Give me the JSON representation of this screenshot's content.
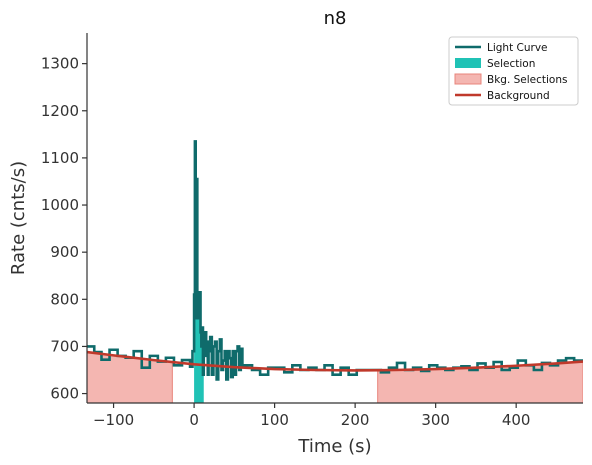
{
  "chart_data": {
    "type": "line",
    "title": "n8",
    "xlabel": "Time (s)",
    "ylabel": "Rate (cnts/s)",
    "xlim": [
      -133,
      483
    ],
    "ylim": [
      580,
      1365
    ],
    "x_ticks": [
      -100,
      0,
      100,
      200,
      300,
      400
    ],
    "y_ticks": [
      600,
      700,
      800,
      900,
      1000,
      1100,
      1200,
      1300
    ],
    "x_tick_labels": [
      "−100",
      "0",
      "100",
      "200",
      "300",
      "400"
    ],
    "y_tick_labels": [
      "600",
      "700",
      "800",
      "900",
      "1000",
      "1100",
      "1200",
      "1300"
    ],
    "legend": {
      "position": "top-right",
      "entries": [
        {
          "label": "Light Curve",
          "kind": "line",
          "color": "#0f6b6b"
        },
        {
          "label": "Selection",
          "kind": "patch",
          "color": "#20c2b5"
        },
        {
          "label": "Bkg. Selections",
          "kind": "patch",
          "color": "#f4b6b1"
        },
        {
          "label": "Background",
          "kind": "line",
          "color": "#c0392b"
        }
      ]
    },
    "colors": {
      "light_curve": "#0f6b6b",
      "selection": "#20c2b5",
      "bkg_selection_fill": "#f4b6b1",
      "bkg_selection_edge": "#e8847b",
      "background": "#c0392b",
      "axis": "#333333"
    },
    "selection": {
      "x_start": 0,
      "x_end": 12
    },
    "bkg_selections": [
      {
        "x_start": -133,
        "x_end": -27
      },
      {
        "x_start": 228,
        "x_end": 483
      }
    ],
    "background_model": {
      "x": [
        -133,
        -100,
        -50,
        0,
        50,
        100,
        150,
        200,
        250,
        300,
        350,
        400,
        450,
        483
      ],
      "y": [
        688,
        681,
        671,
        662,
        656,
        652,
        650,
        649,
        650,
        652,
        655,
        659,
        664,
        668
      ]
    },
    "light_curve": {
      "x": [
        -133,
        -124,
        -115,
        -105,
        -95,
        -85,
        -75,
        -65,
        -55,
        -45,
        -35,
        -25,
        -15,
        -5,
        -2,
        0,
        1,
        2,
        3,
        4,
        5,
        6,
        7,
        8,
        9,
        10,
        11,
        12,
        13,
        14,
        15,
        16,
        17,
        18,
        19,
        20,
        22,
        24,
        26,
        28,
        30,
        32,
        34,
        36,
        38,
        40,
        42,
        44,
        46,
        48,
        50,
        52,
        54,
        56,
        58,
        60,
        62,
        72,
        82,
        92,
        102,
        112,
        122,
        132,
        142,
        152,
        162,
        172,
        182,
        192,
        202,
        212,
        222,
        232,
        242,
        252,
        262,
        272,
        282,
        292,
        302,
        312,
        322,
        332,
        342,
        352,
        362,
        372,
        382,
        392,
        402,
        412,
        422,
        432,
        442,
        452,
        462,
        472
      ],
      "y": [
        700,
        688,
        672,
        693,
        680,
        676,
        690,
        655,
        680,
        668,
        676,
        660,
        671,
        657,
        690,
        810,
        1135,
        760,
        1055,
        800,
        780,
        760,
        815,
        730,
        700,
        740,
        640,
        710,
        690,
        730,
        680,
        710,
        640,
        690,
        700,
        720,
        640,
        700,
        710,
        630,
        690,
        715,
        650,
        670,
        690,
        630,
        690,
        675,
        635,
        690,
        640,
        690,
        700,
        650,
        695,
        660,
        660,
        650,
        640,
        655,
        655,
        645,
        660,
        650,
        655,
        650,
        660,
        640,
        655,
        640,
        650,
        650,
        650,
        645,
        655,
        665,
        650,
        655,
        648,
        660,
        655,
        650,
        655,
        658,
        650,
        664,
        655,
        667,
        650,
        655,
        670,
        660,
        650,
        665,
        660,
        670,
        675,
        670
      ]
    }
  }
}
